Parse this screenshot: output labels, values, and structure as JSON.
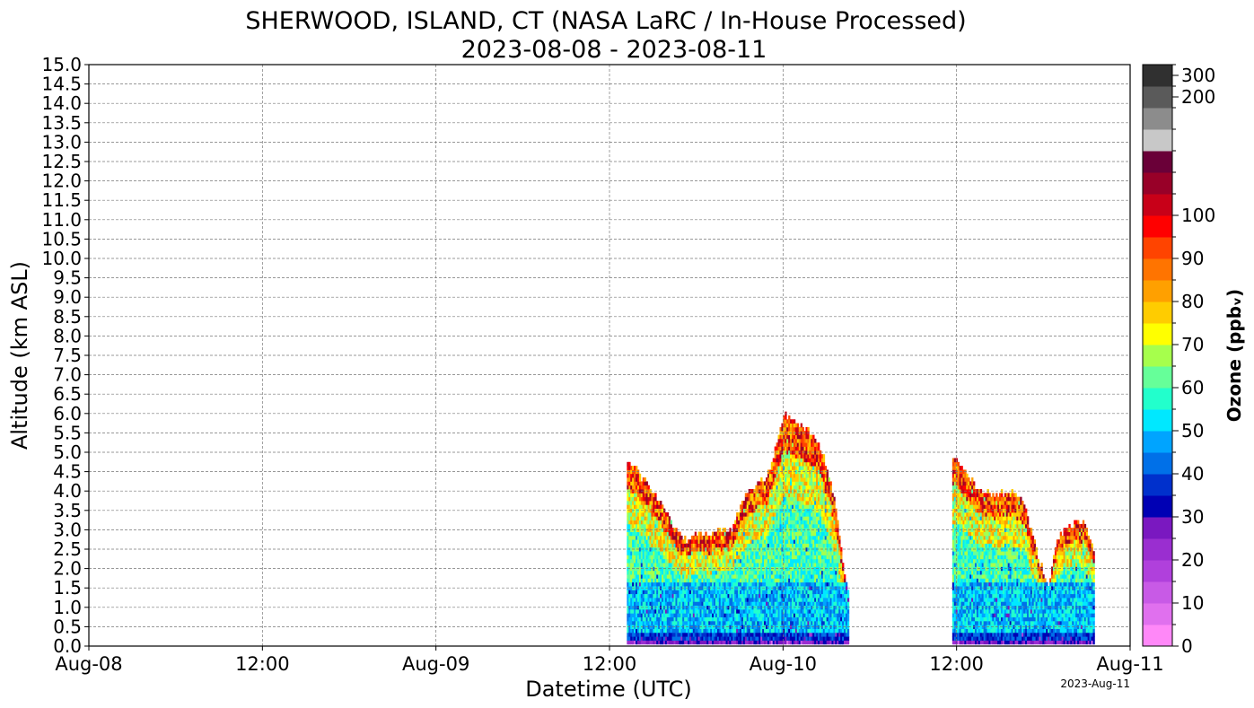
{
  "chart_data": {
    "type": "heatmap",
    "title_line1": "SHERWOOD, ISLAND, CT (NASA LaRC / In-House Processed)",
    "title_line2": "2023-08-08 - 2023-08-11",
    "xlabel": "Datetime (UTC)",
    "ylabel": "Altitude (km ASL)",
    "colorbar_label": "Ozone ($ppb_v$)",
    "colorbar_label_display": "Ozone (ppbᵥ)",
    "timestamp": "2023-Aug-11",
    "x_range_hours": [
      0,
      72
    ],
    "ylim": [
      0,
      15
    ],
    "grid": true,
    "x_ticks": [
      {
        "hour": 0,
        "label": "Aug-08"
      },
      {
        "hour": 12,
        "label": "12:00"
      },
      {
        "hour": 24,
        "label": "Aug-09"
      },
      {
        "hour": 36,
        "label": "12:00"
      },
      {
        "hour": 48,
        "label": "Aug-10"
      },
      {
        "hour": 60,
        "label": "12:00"
      },
      {
        "hour": 72,
        "label": "Aug-11"
      }
    ],
    "y_ticks": [
      "0.0",
      "0.5",
      "1.0",
      "1.5",
      "2.0",
      "2.5",
      "3.0",
      "3.5",
      "4.0",
      "4.5",
      "5.0",
      "5.5",
      "6.0",
      "6.5",
      "7.0",
      "7.5",
      "8.0",
      "8.5",
      "9.0",
      "9.5",
      "10.0",
      "10.5",
      "11.0",
      "11.5",
      "12.0",
      "12.5",
      "13.0",
      "13.5",
      "14.0",
      "14.5",
      "15.0"
    ],
    "colorbar": {
      "colors": [
        "#ff88f8",
        "#e070ee",
        "#c85ae6",
        "#b040dc",
        "#9a2ed0",
        "#7a18c0",
        "#0000b4",
        "#0030cc",
        "#0070e8",
        "#00a4ff",
        "#00e8ff",
        "#22ffcc",
        "#66ff99",
        "#a6ff4c",
        "#ffff00",
        "#ffcc00",
        "#ffa000",
        "#ff7400",
        "#ff4400",
        "#ff0000",
        "#c80018",
        "#980028",
        "#6a0038",
        "#c8c8c8",
        "#8c8c8c",
        "#5a5a5a",
        "#303030"
      ],
      "tick_labels": [
        {
          "label": "0",
          "bin": 0
        },
        {
          "label": "10",
          "bin": 2
        },
        {
          "label": "20",
          "bin": 4
        },
        {
          "label": "30",
          "bin": 6
        },
        {
          "label": "40",
          "bin": 8
        },
        {
          "label": "50",
          "bin": 10
        },
        {
          "label": "60",
          "bin": 12
        },
        {
          "label": "70",
          "bin": 14
        },
        {
          "label": "80",
          "bin": 16
        },
        {
          "label": "90",
          "bin": 18
        },
        {
          "label": "100",
          "bin": 20
        },
        {
          "label": "200",
          "bin": 25
        },
        {
          "label": "300",
          "bin": 26
        }
      ]
    },
    "segments": [
      {
        "name": "segment-1",
        "start_hour": 37.2,
        "end_hour": 52.5,
        "top_profile_km": [
          [
            37.2,
            4.7
          ],
          [
            38.0,
            4.4
          ],
          [
            38.8,
            4.0
          ],
          [
            39.6,
            3.6
          ],
          [
            40.4,
            3.0
          ],
          [
            41.2,
            2.7
          ],
          [
            42.0,
            2.9
          ],
          [
            42.8,
            2.8
          ],
          [
            43.6,
            2.9
          ],
          [
            44.4,
            3.0
          ],
          [
            45.2,
            3.8
          ],
          [
            46.0,
            4.1
          ],
          [
            46.8,
            4.3
          ],
          [
            47.4,
            5.0
          ],
          [
            48.0,
            5.9
          ],
          [
            48.8,
            5.7
          ],
          [
            49.6,
            5.5
          ],
          [
            50.4,
            5.2
          ],
          [
            51.0,
            4.6
          ],
          [
            51.6,
            3.5
          ],
          [
            52.2,
            1.8
          ],
          [
            52.5,
            1.3
          ]
        ]
      },
      {
        "name": "segment-2",
        "start_hour": 59.7,
        "end_hour": 69.5,
        "top_profile_km": [
          [
            59.7,
            4.8
          ],
          [
            60.6,
            4.5
          ],
          [
            61.4,
            4.0
          ],
          [
            62.2,
            3.9
          ],
          [
            63.0,
            3.9
          ],
          [
            63.8,
            3.9
          ],
          [
            64.5,
            3.7
          ],
          [
            65.2,
            2.8
          ],
          [
            65.8,
            2.0
          ],
          [
            66.3,
            1.5
          ],
          [
            66.8,
            2.6
          ],
          [
            67.5,
            3.0
          ],
          [
            68.2,
            3.1
          ],
          [
            68.8,
            3.1
          ],
          [
            69.3,
            2.6
          ],
          [
            69.5,
            2.2
          ]
        ]
      }
    ]
  }
}
